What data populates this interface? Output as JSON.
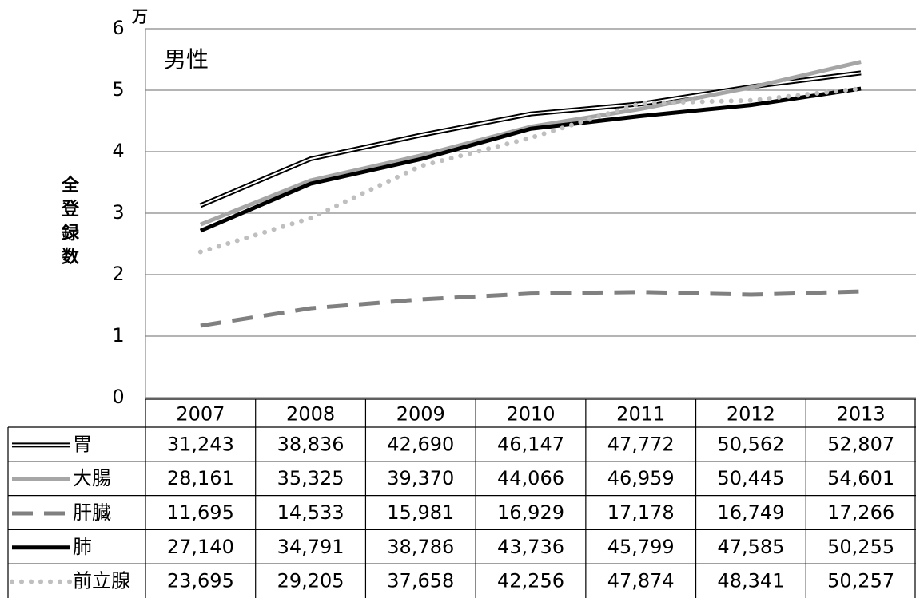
{
  "chart_data": {
    "type": "line",
    "title": "男性",
    "y_label": "全登録数",
    "y_unit": "万",
    "categories": [
      "2007",
      "2008",
      "2009",
      "2010",
      "2011",
      "2012",
      "2013"
    ],
    "ylim": [
      0,
      60000
    ],
    "yticks": [
      {
        "value": 0,
        "label": "0"
      },
      {
        "value": 10000,
        "label": "1"
      },
      {
        "value": 20000,
        "label": "2"
      },
      {
        "value": 30000,
        "label": "3"
      },
      {
        "value": 40000,
        "label": "4"
      },
      {
        "value": 50000,
        "label": "5"
      },
      {
        "value": 60000,
        "label": "6"
      }
    ],
    "grid": true,
    "series": [
      {
        "name": "胃",
        "color": "#000000",
        "line_style": "double",
        "values": [
          31243,
          38836,
          42690,
          46147,
          47772,
          50562,
          52807
        ],
        "value_labels": [
          "31,243",
          "38,836",
          "42,690",
          "46,147",
          "47,772",
          "50,562",
          "52,807"
        ]
      },
      {
        "name": "大腸",
        "color": "#a6a6a6",
        "line_style": "solid",
        "values": [
          28161,
          35325,
          39370,
          44066,
          46959,
          50445,
          54601
        ],
        "value_labels": [
          "28,161",
          "35,325",
          "39,370",
          "44,066",
          "46,959",
          "50,445",
          "54,601"
        ]
      },
      {
        "name": "肝臓",
        "color": "#808080",
        "line_style": "dashed",
        "values": [
          11695,
          14533,
          15981,
          16929,
          17178,
          16749,
          17266
        ],
        "value_labels": [
          "11,695",
          "14,533",
          "15,981",
          "16,929",
          "17,178",
          "16,749",
          "17,266"
        ]
      },
      {
        "name": "肺",
        "color": "#000000",
        "line_style": "solid",
        "values": [
          27140,
          34791,
          38786,
          43736,
          45799,
          47585,
          50255
        ],
        "value_labels": [
          "27,140",
          "34,791",
          "38,786",
          "43,736",
          "45,799",
          "47,585",
          "50,255"
        ]
      },
      {
        "name": "前立腺",
        "color": "#bfbfbf",
        "line_style": "dotted",
        "values": [
          23695,
          29205,
          37658,
          42256,
          47874,
          48341,
          50257
        ],
        "value_labels": [
          "23,695",
          "29,205",
          "37,658",
          "42,256",
          "47,874",
          "48,341",
          "50,257"
        ]
      }
    ]
  }
}
